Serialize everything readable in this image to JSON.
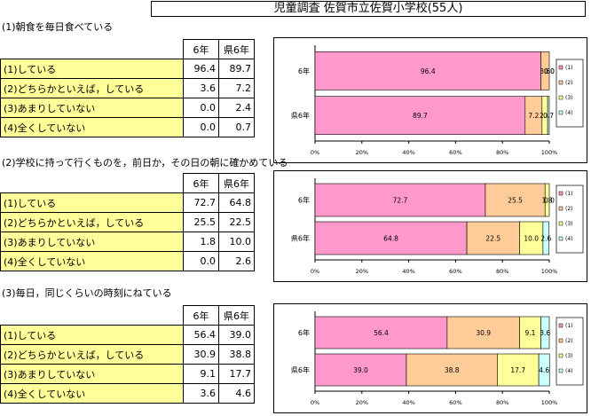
{
  "title": "児童調査  佐賀市立佐賀小学校(55人)",
  "header": {
    "col1": "6年",
    "col2": "県6年"
  },
  "colors": {
    "s1": "#ff99cc",
    "s2": "#ffcc99",
    "s3": "#ffff99",
    "s4": "#ccffff",
    "table_fill": "#ffff99"
  },
  "legend": [
    "(1)",
    "(2)",
    "(3)",
    "(4)"
  ],
  "xticks": [
    "0%",
    "20%",
    "40%",
    "60%",
    "80%",
    "100%"
  ],
  "sections": [
    {
      "question": "(1)朝食を毎日食べている",
      "rows": [
        {
          "label": "(1)している",
          "v6": "96.4",
          "vk": "89.7"
        },
        {
          "label": "(2)どちらかといえば，している",
          "v6": "3.6",
          "vk": "7.2"
        },
        {
          "label": "(3)あまりしていない",
          "v6": "0.0",
          "vk": "2.4"
        },
        {
          "label": "(4)全くしていない",
          "v6": "0.0",
          "vk": "0.7"
        }
      ]
    },
    {
      "question": "(2)学校に持って行くものを，前日か，その日の朝に確かめている",
      "rows": [
        {
          "label": "(1)している",
          "v6": "72.7",
          "vk": "64.8"
        },
        {
          "label": "(2)どちらかといえば，している",
          "v6": "25.5",
          "vk": "22.5"
        },
        {
          "label": "(3)あまりしていない",
          "v6": "1.8",
          "vk": "10.0"
        },
        {
          "label": "(4)全くしていない",
          "v6": "0.0",
          "vk": "2.6"
        }
      ]
    },
    {
      "question": "(3)毎日，同じくらいの時刻にねている",
      "rows": [
        {
          "label": "(1)している",
          "v6": "56.4",
          "vk": "39.0"
        },
        {
          "label": "(2)どちらかといえば，している",
          "v6": "30.9",
          "vk": "38.8"
        },
        {
          "label": "(3)あまりしていない",
          "v6": "9.1",
          "vk": "17.7"
        },
        {
          "label": "(4)全くしていない",
          "v6": "3.6",
          "vk": "4.6"
        }
      ]
    }
  ],
  "chart_data": [
    {
      "type": "bar",
      "orientation": "horizontal-stacked",
      "categories": [
        "6年",
        "県6年"
      ],
      "series": [
        {
          "name": "(1)",
          "values": [
            96.4,
            89.7
          ]
        },
        {
          "name": "(2)",
          "values": [
            3.6,
            7.2
          ]
        },
        {
          "name": "(3)",
          "values": [
            0.0,
            2.4
          ]
        },
        {
          "name": "(4)",
          "values": [
            0.0,
            0.7
          ]
        }
      ],
      "xlim": [
        0,
        100
      ],
      "legend_position": "right"
    },
    {
      "type": "bar",
      "orientation": "horizontal-stacked",
      "categories": [
        "6年",
        "県6年"
      ],
      "series": [
        {
          "name": "(1)",
          "values": [
            72.7,
            64.8
          ]
        },
        {
          "name": "(2)",
          "values": [
            25.5,
            22.5
          ]
        },
        {
          "name": "(3)",
          "values": [
            1.8,
            10.0
          ]
        },
        {
          "name": "(4)",
          "values": [
            0.0,
            2.6
          ]
        }
      ],
      "xlim": [
        0,
        100
      ],
      "legend_position": "right"
    },
    {
      "type": "bar",
      "orientation": "horizontal-stacked",
      "categories": [
        "6年",
        "県6年"
      ],
      "series": [
        {
          "name": "(1)",
          "values": [
            56.4,
            39.0
          ]
        },
        {
          "name": "(2)",
          "values": [
            30.9,
            38.8
          ]
        },
        {
          "name": "(3)",
          "values": [
            9.1,
            17.7
          ]
        },
        {
          "name": "(4)",
          "values": [
            3.6,
            4.6
          ]
        }
      ],
      "xlim": [
        0,
        100
      ],
      "legend_position": "right"
    }
  ]
}
